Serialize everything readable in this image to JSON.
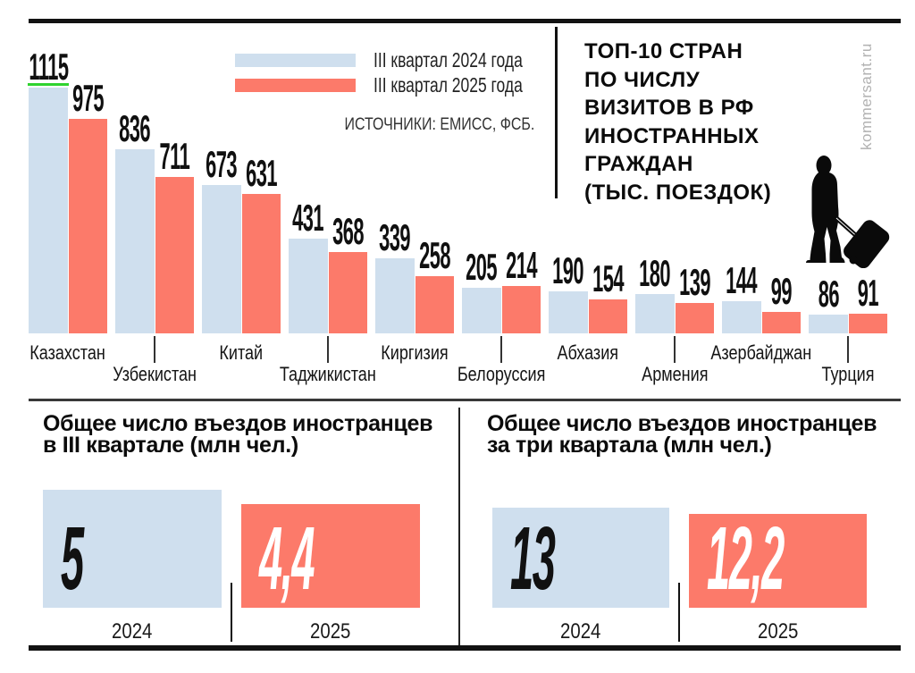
{
  "header": {
    "title": "ТОП-10 СТРАН\nПО ЧИСЛУ\nВИЗИТОВ В РФ\nИНОСТРАННЫХ\nГРАЖДАН\n(ТЫС. ПОЕЗДОК)",
    "watermark": "kommersant.ru",
    "source": "ИСТОЧНИКИ: ЕМИСС, ФСБ."
  },
  "colors": {
    "bar_2024": "#cfdfee",
    "bar_2025": "#fc7a6a",
    "highlight_underline": "#2fd32f",
    "text": "#101010"
  },
  "legend": {
    "items": [
      {
        "label": "III квартал 2024 года",
        "color": "#cfdfee"
      },
      {
        "label": "III квартал 2025 года",
        "color": "#fc7a6a"
      }
    ]
  },
  "chart_data": {
    "type": "bar",
    "title": "ТОП-10 СТРАН ПО ЧИСЛУ ВИЗИТОВ В РФ ИНОСТРАННЫХ ГРАЖДАН (ТЫС. ПОЕЗДОК)",
    "unit": "тыс. поездок",
    "categories": [
      "Казахстан",
      "Узбекистан",
      "Китай",
      "Таджикистан",
      "Киргизия",
      "Белоруссия",
      "Абхазия",
      "Армения",
      "Азербайджан",
      "Турция"
    ],
    "series": [
      {
        "name": "III квартал 2024 года",
        "color": "#cfdfee",
        "values": [
          1115,
          836,
          673,
          431,
          339,
          205,
          190,
          180,
          144,
          86
        ]
      },
      {
        "name": "III квартал 2025 года",
        "color": "#fc7a6a",
        "values": [
          975,
          711,
          631,
          368,
          258,
          214,
          154,
          139,
          99,
          91
        ]
      }
    ],
    "ylim": [
      0,
      1115
    ],
    "grid": false,
    "value_labels": true,
    "legend_position": "top-center",
    "highlight_first_value_underline": "#2fd32f"
  },
  "summary_panels": [
    {
      "heading": "Общее число въездов иностранцев\nв III квартале (млн чел.)",
      "items": [
        {
          "year": "2024",
          "label": "5",
          "value": 5,
          "color": "#cfdfee",
          "text_color": "#111111"
        },
        {
          "year": "2025",
          "label": "4,4",
          "value": 4.4,
          "color": "#fc7a6a",
          "text_color": "#ffffff"
        }
      ]
    },
    {
      "heading": "Общее число въездов иностранцев\nза три квартала (млн чел.)",
      "items": [
        {
          "year": "2024",
          "label": "13",
          "value": 13,
          "color": "#cfdfee",
          "text_color": "#111111"
        },
        {
          "year": "2025",
          "label": "12,2",
          "value": 12.2,
          "color": "#fc7a6a",
          "text_color": "#ffffff"
        }
      ]
    }
  ]
}
